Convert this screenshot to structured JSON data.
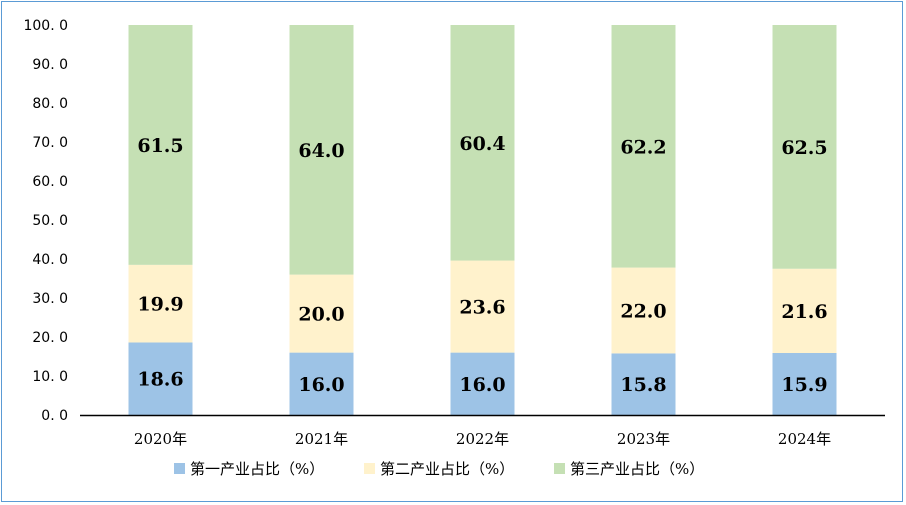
{
  "chart_data": {
    "type": "bar",
    "stacked": true,
    "categories": [
      "2020年",
      "2021年",
      "2022年",
      "2023年",
      "2024年"
    ],
    "series": [
      {
        "name": "第一产业占比（%）",
        "values": [
          18.6,
          16.0,
          16.0,
          15.8,
          15.9
        ],
        "color": "#9dc3e6"
      },
      {
        "name": "第二产业占比（%）",
        "values": [
          19.9,
          20.0,
          23.6,
          22.0,
          21.6
        ],
        "color": "#fff2cc"
      },
      {
        "name": "第三产业占比（%）",
        "values": [
          61.5,
          64.0,
          60.4,
          62.2,
          62.5
        ],
        "color": "#c5e0b4"
      }
    ],
    "ylim": [
      0,
      100
    ],
    "yticks": [
      0,
      10,
      20,
      30,
      40,
      50,
      60,
      70,
      80,
      90,
      100
    ],
    "ytick_labels": [
      "0. 0",
      "10. 0",
      "20. 0",
      "30. 0",
      "40. 0",
      "50. 0",
      "60. 0",
      "70. 0",
      "80. 0",
      "90. 0",
      "100. 0"
    ],
    "grid": false,
    "legend_position": "bottom",
    "title": "",
    "xlabel": "",
    "ylabel": ""
  }
}
